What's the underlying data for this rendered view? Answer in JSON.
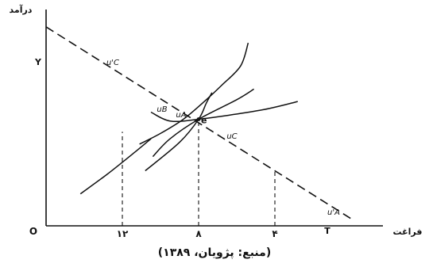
{
  "chart_data": {
    "type": "line",
    "title": "",
    "y_axis_label": "درآمد",
    "x_axis_label": "فراغت",
    "origin_label": "O",
    "x_tick_labels": [
      "۱۲",
      "۸",
      "۴"
    ],
    "x_end_label": "T",
    "y_intercept_label": "Y",
    "point_label": "e",
    "curve_labels": [
      "u'C",
      "uB",
      "uA",
      "uC",
      "u'A"
    ],
    "xlim": [
      0,
      16
    ],
    "ylim": [
      0,
      12
    ],
    "budget_line": {
      "points": [
        [
          0,
          11.2
        ],
        [
          16,
          0.4
        ]
      ],
      "style": "dashed"
    },
    "equilibrium": {
      "x": 8,
      "y": 6.0
    },
    "dashed_drops": [
      12,
      8,
      4
    ],
    "curves": [
      {
        "name": "u'C",
        "points": [
          [
            10.6,
            10.3
          ],
          [
            10.2,
            9.0
          ],
          [
            9.2,
            7.9
          ],
          [
            8.3,
            7.0
          ],
          [
            7.2,
            6.0
          ],
          [
            6.0,
            5.2
          ],
          [
            4.9,
            4.6
          ]
        ]
      },
      {
        "name": "uB",
        "points": [
          [
            10.9,
            7.7
          ],
          [
            10.0,
            7.1
          ],
          [
            8.0,
            6.0
          ],
          [
            6.5,
            4.9
          ],
          [
            5.6,
            3.9
          ]
        ]
      },
      {
        "name": "uA",
        "points": [
          [
            8.7,
            7.5
          ],
          [
            8.4,
            6.9
          ],
          [
            8.0,
            6.0
          ],
          [
            7.0,
            4.7
          ],
          [
            5.2,
            3.1
          ]
        ]
      },
      {
        "name": "uC",
        "points": [
          [
            13.2,
            7.0
          ],
          [
            11.2,
            6.5
          ],
          [
            8.0,
            6.0
          ],
          [
            6.5,
            5.9
          ],
          [
            5.5,
            6.4
          ]
        ]
      },
      {
        "name": "u'A",
        "points": [
          [
            5.5,
            4.9
          ],
          [
            4.6,
            4.1
          ],
          [
            3.2,
            2.9
          ],
          [
            1.8,
            1.8
          ]
        ]
      }
    ]
  },
  "caption": "(منبع: پژویان، ۱۳۸۹)"
}
